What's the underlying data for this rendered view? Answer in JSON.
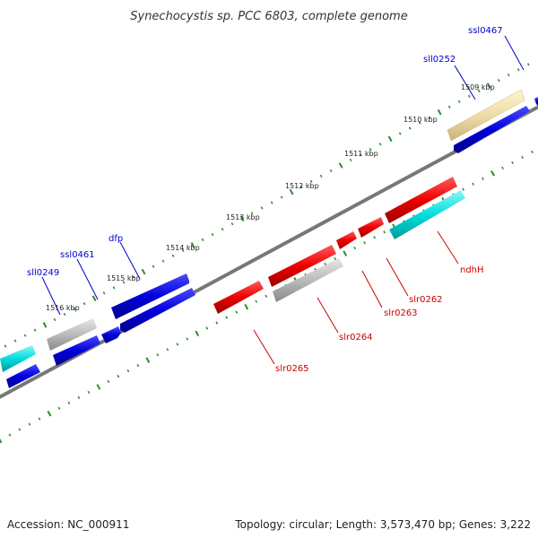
{
  "title": "Synechocystis sp. PCC 6803, complete genome",
  "footer": {
    "accession": "Accession: NC_000911",
    "summary": "Topology: circular; Length: 3,573,470 bp; Genes: 3,222"
  },
  "colors": {
    "backbone": "#888888",
    "tick_dots": "#2e8b2e",
    "forward_strand_label": "#0000cc",
    "reverse_strand_label": "#cc0000",
    "blue_gene": "#0000dd",
    "red_gene": "#ee0000",
    "cyan_gene": "#00dddd",
    "gray_gene": "#bbbbbb",
    "khaki_gene": "#eeddaa"
  },
  "tick_labels": [
    "1509 kbp",
    "1510 kbp",
    "1511 kbp",
    "1512 kbp",
    "1513 kbp",
    "1514 kbp",
    "1515 kbp",
    "1516 kbp"
  ],
  "gene_labels": {
    "forward": [
      "ssl0467",
      "sll0252",
      "dfp",
      "ssl0461",
      "sll0249"
    ],
    "reverse": [
      "ndhH",
      "slr0262",
      "slr0263",
      "slr0264",
      "slr0265"
    ]
  }
}
